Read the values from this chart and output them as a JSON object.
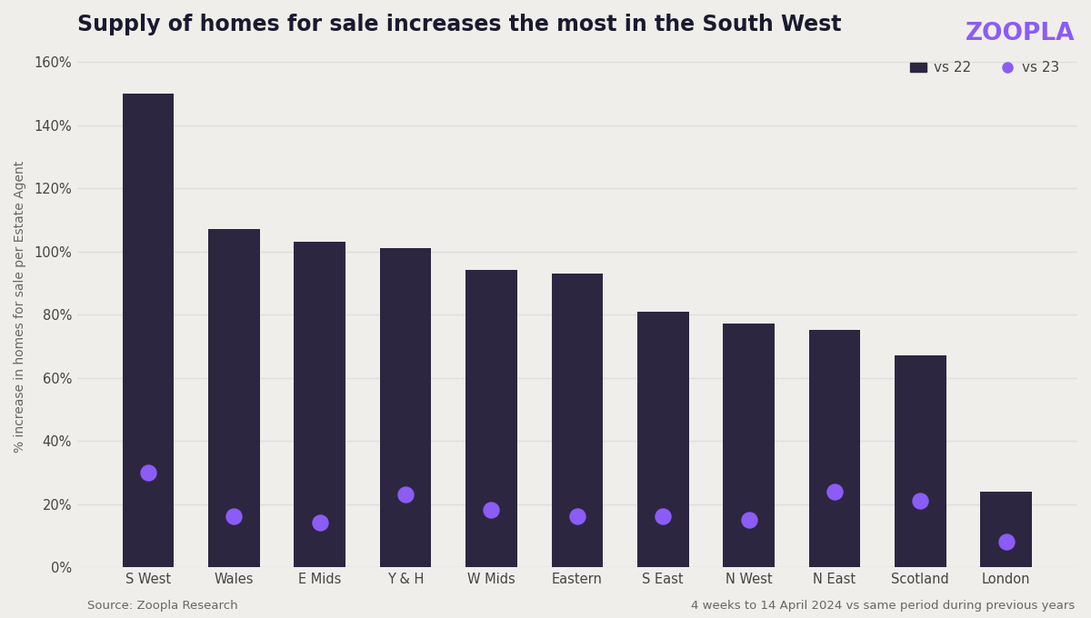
{
  "title": "Supply of homes for sale increases the most in the South West",
  "ylabel": "% increase in homes for sale per Estate Agent",
  "source_left": "Source: Zoopla Research",
  "source_right": "4 weeks to 14 April 2024 vs same period during previous years",
  "zoopla_logo": "ZOOPLA",
  "categories": [
    "S West",
    "Wales",
    "E Mids",
    "Y & H",
    "W Mids",
    "Eastern",
    "S East",
    "N West",
    "N East",
    "Scotland",
    "London"
  ],
  "vs22_values": [
    150,
    107,
    103,
    101,
    94,
    93,
    81,
    77,
    75,
    67,
    24
  ],
  "vs23_values": [
    30,
    16,
    14,
    23,
    18,
    16,
    16,
    15,
    24,
    21,
    8
  ],
  "bar_color": "#2d2640",
  "dot_color": "#8b5cf6",
  "background_color": "#f0eeeb",
  "title_color": "#1a1a2e",
  "axis_label_color": "#666666",
  "tick_label_color": "#444444",
  "grid_color": "#e0dedd",
  "legend_label_vs22": "vs 22",
  "legend_label_vs23": "vs 23",
  "ylim": [
    0,
    165
  ],
  "yticks": [
    0,
    20,
    40,
    60,
    80,
    100,
    120,
    140,
    160
  ],
  "title_fontsize": 17,
  "ylabel_fontsize": 10,
  "tick_fontsize": 10.5,
  "legend_fontsize": 11,
  "source_fontsize": 9.5,
  "bar_width": 0.6
}
